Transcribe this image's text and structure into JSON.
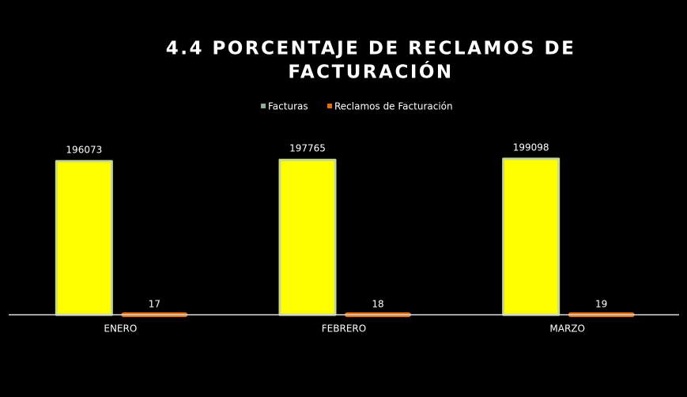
{
  "chart_data": {
    "type": "bar",
    "title": [
      "4.4 PORCENTAJE DE RECLAMOS DE",
      "FACTURACIÓN"
    ],
    "categories": [
      "ENERO",
      "FEBRERO",
      "MARZO"
    ],
    "series": [
      {
        "name": "Facturas",
        "color": "#ffff00",
        "legend_color": "#8fae96",
        "values": [
          196073,
          197765,
          199098
        ]
      },
      {
        "name": "Reclamos de Facturación",
        "color": "#e0700f",
        "legend_color": "#e0700f",
        "values": [
          17,
          18,
          19
        ]
      }
    ],
    "ylim": [
      0,
      200000
    ],
    "grid": false,
    "legend": "top"
  }
}
